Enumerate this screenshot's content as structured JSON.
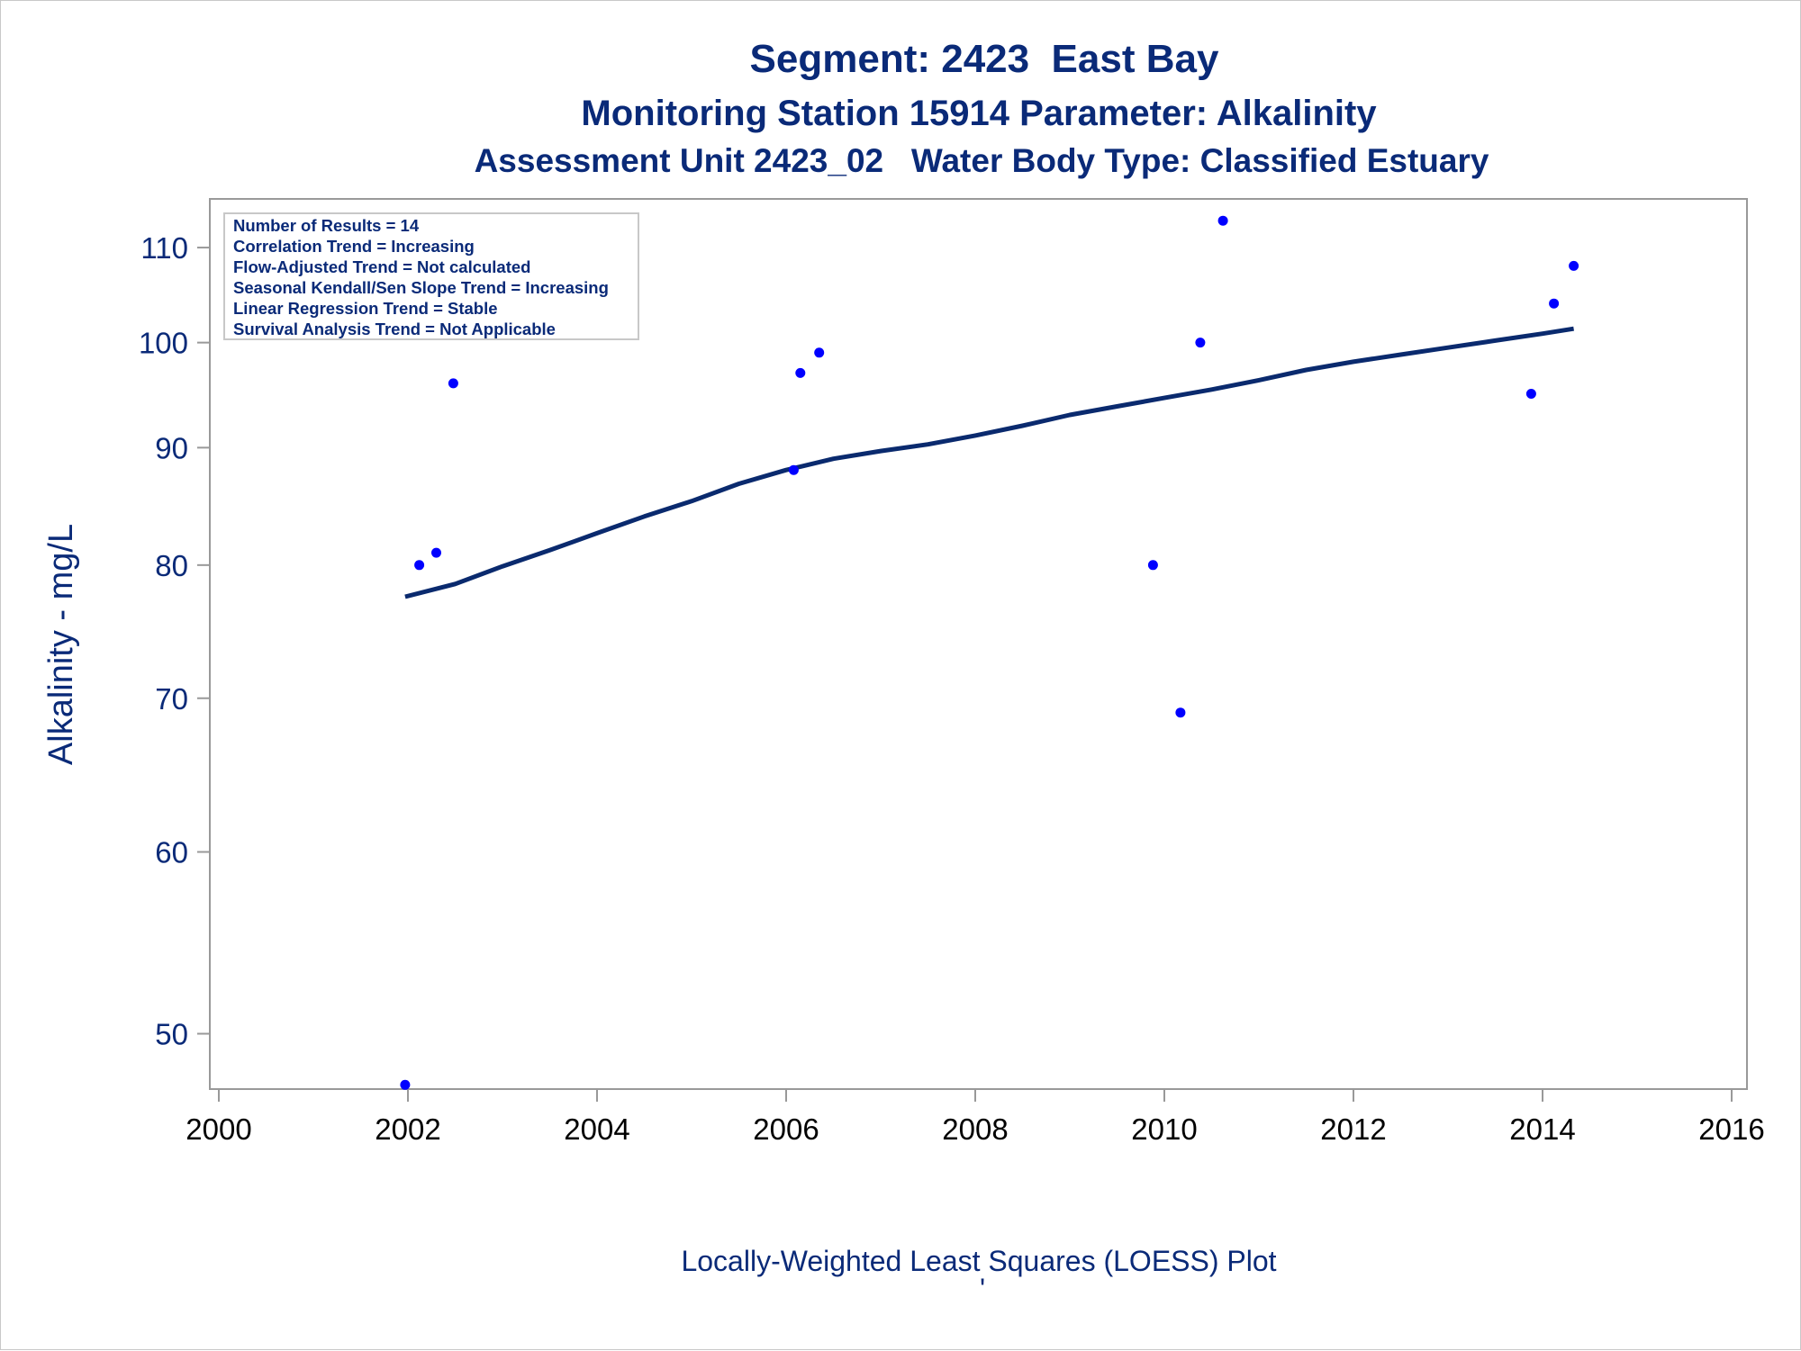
{
  "chart_data": {
    "type": "scatter",
    "title": "Segment: 2423  East Bay",
    "subtitle": "Monitoring Station 15914 Parameter: Alkalinity",
    "subtitle2": "Assessment Unit 2423_02   Water Body Type: Classified Estuary",
    "xlabel": "Locally-Weighted Least Squares (LOESS) Plot",
    "ylabel": "Alkalinity - mg/L",
    "footnote": "'",
    "xlim": [
      2000,
      2016
    ],
    "ylim": [
      47.3,
      115.5
    ],
    "y_scale": "log",
    "x_ticks": [
      2000,
      2002,
      2004,
      2006,
      2008,
      2010,
      2012,
      2014,
      2016
    ],
    "y_ticks": [
      50,
      60,
      70,
      80,
      90,
      100,
      110
    ],
    "grid": false,
    "colors": {
      "text": "#0a2a78",
      "points": "#0000ff",
      "line": "#0a2a6e",
      "axes": "#999999"
    },
    "inset_lines": [
      "Number of Results = 14",
      "Correlation Trend = Increasing",
      "Flow-Adjusted Trend = Not calculated",
      "Seasonal Kendall/Sen Slope Trend = Increasing",
      "Linear Regression Trend = Stable",
      "Survival Analysis Trend = Not Applicable"
    ],
    "inset_placement": "top-left",
    "series": [
      {
        "type": "scatter",
        "points": [
          [
            2001.97,
            47.5
          ],
          [
            2002.12,
            80
          ],
          [
            2002.3,
            81
          ],
          [
            2002.48,
            96
          ],
          [
            2006.08,
            88
          ],
          [
            2006.15,
            97
          ],
          [
            2006.35,
            99
          ],
          [
            2009.88,
            80
          ],
          [
            2010.17,
            69
          ],
          [
            2010.38,
            100
          ],
          [
            2010.62,
            113
          ],
          [
            2013.88,
            95
          ],
          [
            2014.12,
            104
          ],
          [
            2014.33,
            108
          ]
        ]
      },
      {
        "type": "line",
        "points": [
          [
            2001.97,
            77.5
          ],
          [
            2002.5,
            78.5
          ],
          [
            2003,
            79.9
          ],
          [
            2003.5,
            81.2
          ],
          [
            2004,
            82.6
          ],
          [
            2004.5,
            84.0
          ],
          [
            2005,
            85.3
          ],
          [
            2005.5,
            86.8
          ],
          [
            2006,
            88.0
          ],
          [
            2006.5,
            89.0
          ],
          [
            2007,
            89.7
          ],
          [
            2007.5,
            90.3
          ],
          [
            2008,
            91.1
          ],
          [
            2008.5,
            92.0
          ],
          [
            2009,
            93.0
          ],
          [
            2009.5,
            93.8
          ],
          [
            2010,
            94.6
          ],
          [
            2010.5,
            95.4
          ],
          [
            2011,
            96.3
          ],
          [
            2011.5,
            97.3
          ],
          [
            2012,
            98.1
          ],
          [
            2012.5,
            98.8
          ],
          [
            2013,
            99.5
          ],
          [
            2013.5,
            100.2
          ],
          [
            2014,
            100.9
          ],
          [
            2014.33,
            101.4
          ]
        ]
      }
    ]
  }
}
